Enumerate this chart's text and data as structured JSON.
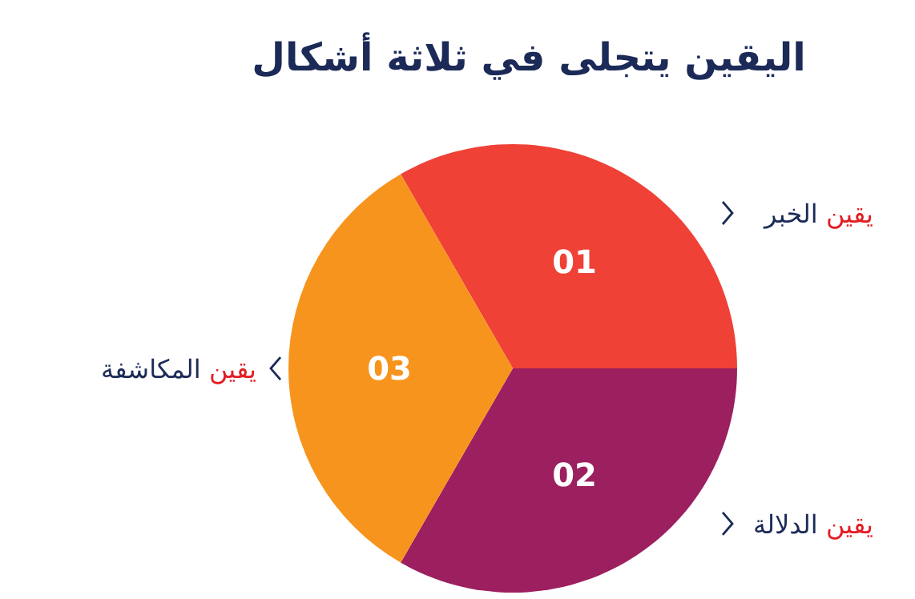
{
  "chart_data": {
    "type": "pie",
    "title": "اليقين يتجلى في ثلاثة أشكال",
    "categories": [
      "يقين الخبر",
      "يقين الدلالة",
      "يقين المكاشفة"
    ],
    "values": [
      33.33,
      33.33,
      33.34
    ],
    "colors": [
      "#ef4136",
      "#9c1f5f",
      "#f7941d"
    ],
    "annotations": [
      "01",
      "02",
      "03"
    ]
  }
}
